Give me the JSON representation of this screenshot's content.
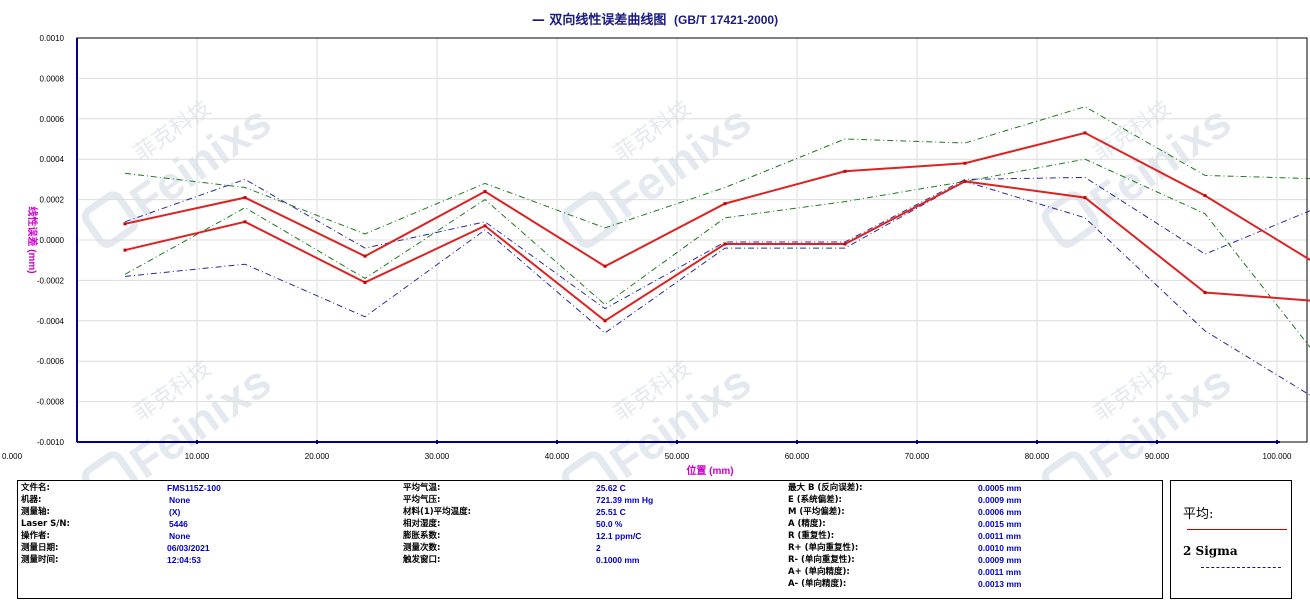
{
  "chart_title": {
    "zh": "— 双向线性误差曲线图",
    "std": "(GB/T 17421-2000)"
  },
  "chart_data": {
    "type": "line",
    "xlabel": "位置 (mm)",
    "ylabel": "线性误差 (mm)",
    "xlim": [
      0,
      105
    ],
    "ylim": [
      -0.001,
      0.001
    ],
    "xtick_values": [
      0,
      10,
      20,
      30,
      40,
      50,
      60,
      70,
      80,
      90,
      100
    ],
    "xtick_labels": [
      "0.000",
      "10.000",
      "20.000",
      "30.000",
      "40.000",
      "50.000",
      "60.000",
      "70.000",
      "80.000",
      "90.000",
      "100.000"
    ],
    "ytick_values": [
      0.001,
      0.0008,
      0.0006,
      0.0004,
      0.0002,
      0,
      -0.0002,
      -0.0004,
      -0.0006,
      -0.0008,
      -0.001
    ],
    "ytick_labels": [
      "0.0010",
      "0.0008",
      "0.0006",
      "0.0004",
      "0.0002",
      "0.0000",
      "-0.0002",
      "-0.0004",
      "-0.0006",
      "-0.0008",
      "-0.0010"
    ],
    "grid": true,
    "x": [
      4,
      14,
      24,
      34,
      44,
      54,
      64,
      74,
      84,
      94,
      105
    ],
    "series": [
      {
        "role": "mean-forward",
        "style": "solid",
        "color": "#dd2222",
        "values": [
          8e-05,
          0.00021,
          -8e-05,
          0.00024,
          -0.00013,
          0.00018,
          0.00034,
          0.00038,
          0.00053,
          0.00022,
          -0.00018
        ]
      },
      {
        "role": "mean-reverse",
        "style": "solid",
        "color": "#dd2222",
        "values": [
          -5e-05,
          9e-05,
          -0.00021,
          7e-05,
          -0.0004,
          -2e-05,
          -2e-05,
          0.00029,
          0.00021,
          -0.00026,
          -0.00031
        ]
      },
      {
        "role": "forward-upper",
        "style": "dashdot",
        "color": "#1e7b1e",
        "values": [
          0.00033,
          0.00026,
          3e-05,
          0.00028,
          6e-05,
          0.00026,
          0.0005,
          0.00048,
          0.00066,
          0.00032,
          0.0003
        ]
      },
      {
        "role": "forward-lower",
        "style": "dashdot",
        "color": "#1e7b1e",
        "values": [
          -0.00017,
          0.00016,
          -0.00019,
          0.0002,
          -0.00032,
          0.00011,
          0.00019,
          0.00029,
          0.0004,
          0.00013,
          -0.0007
        ]
      },
      {
        "role": "reverse-upper",
        "style": "dashdot",
        "color": "#2a2a9a",
        "values": [
          9e-05,
          0.0003,
          -4e-05,
          9e-05,
          -0.00034,
          -1e-05,
          -1e-05,
          0.0003,
          0.00031,
          -7e-05,
          0.0002
        ]
      },
      {
        "role": "reverse-lower",
        "style": "dashdot",
        "color": "#2a2a9a",
        "values": [
          -0.00018,
          -0.00012,
          -0.00038,
          5e-05,
          -0.00046,
          -4e-05,
          -4e-05,
          0.00029,
          0.00011,
          -0.00045,
          -0.00085
        ]
      }
    ]
  },
  "info": {
    "col1": [
      {
        "label": "文件名:",
        "value": "FMS115Z-100"
      },
      {
        "label": "机器:",
        "value": "None"
      },
      {
        "label": "测量轴:",
        "value": "(X)"
      },
      {
        "label": "Laser S/N:",
        "value": "5446"
      },
      {
        "label": "操作者:",
        "value": "None"
      },
      {
        "label": "测量日期:",
        "value": "06/03/2021"
      },
      {
        "label": "测量时间:",
        "value": "12:04:53"
      }
    ],
    "col2": [
      {
        "label": "平均气温:",
        "value": "25.62 C"
      },
      {
        "label": "平均气压:",
        "value": "721.39 mm Hg"
      },
      {
        "label": "材料(1)平均温度:",
        "value": "25.51 C"
      },
      {
        "label": "相对湿度:",
        "value": "50.0 %"
      },
      {
        "label": "膨胀系数:",
        "value": "12.1 ppm/C"
      },
      {
        "label": "测量次数:",
        "value": "2"
      },
      {
        "label": "触发窗口:",
        "value": "0.1000 mm"
      }
    ],
    "col3": [
      {
        "label": "最大 B (反向误差):",
        "value": "0.0005 mm"
      },
      {
        "label": "E (系统偏差):",
        "value": "0.0009 mm"
      },
      {
        "label": "M (平均偏差):",
        "value": "0.0006 mm"
      },
      {
        "label": "A (精度):",
        "value": "0.0015 mm"
      },
      {
        "label": "R (重复性):",
        "value": "0.0011 mm"
      },
      {
        "label": "R+ (单向重复性):",
        "value": "0.0010 mm"
      },
      {
        "label": "R- (单向重复性):",
        "value": "0.0009 mm"
      },
      {
        "label": "A+ (单向精度):",
        "value": "0.0011 mm"
      },
      {
        "label": "A- (单向精度):",
        "value": "0.0013 mm"
      }
    ]
  },
  "legend": {
    "title": "平均:",
    "second": "2 Sigma"
  },
  "watermark": {
    "zh": "菲克科技",
    "en": "Feinixs",
    "color": "#9fb4cc"
  }
}
